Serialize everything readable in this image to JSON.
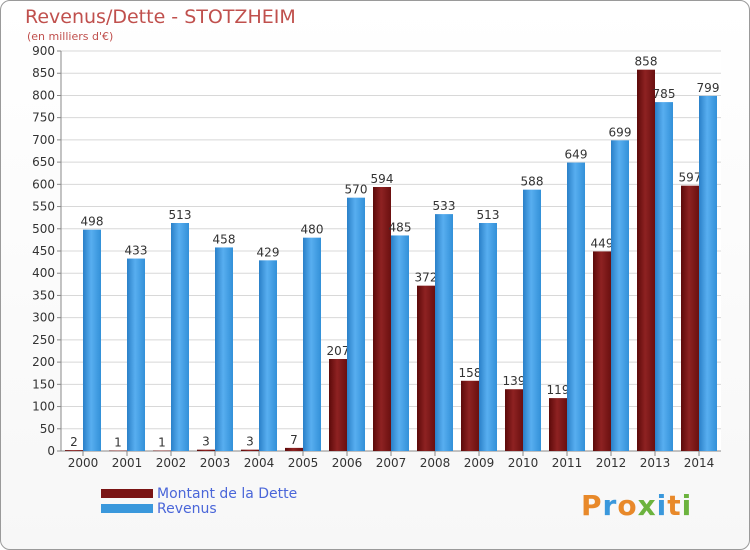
{
  "header": {
    "title": "Revenus/Dette - STOTZHEIM",
    "subtitle": "(en milliers d'€)"
  },
  "legend": {
    "items": [
      {
        "label": "Montant de la Dette",
        "color": "#7a1414"
      },
      {
        "label": "Revenus",
        "color": "#3a98dc"
      }
    ]
  },
  "logo": {
    "text": "Proxiti"
  },
  "chart_data": {
    "type": "bar",
    "title": "Revenus/Dette - STOTZHEIM",
    "subtitle": "(en milliers d'€)",
    "categories": [
      "2000",
      "2001",
      "2002",
      "2003",
      "2004",
      "2005",
      "2006",
      "2007",
      "2008",
      "2009",
      "2010",
      "2011",
      "2012",
      "2013",
      "2014"
    ],
    "series": [
      {
        "name": "Montant de la Dette",
        "color": "#7a1414",
        "values": [
          2,
          1,
          1,
          3,
          3,
          7,
          207,
          594,
          372,
          158,
          139,
          119,
          449,
          858,
          597
        ]
      },
      {
        "name": "Revenus",
        "color": "#3a98dc",
        "values": [
          498,
          433,
          513,
          458,
          429,
          480,
          570,
          485,
          533,
          513,
          588,
          649,
          699,
          785,
          799
        ]
      }
    ],
    "ylim": [
      0,
      900
    ],
    "yticks": [
      0,
      50,
      100,
      150,
      200,
      250,
      300,
      350,
      400,
      450,
      500,
      550,
      600,
      650,
      700,
      750,
      800,
      850,
      900
    ],
    "grid": true,
    "legend_position": "bottom-left"
  }
}
